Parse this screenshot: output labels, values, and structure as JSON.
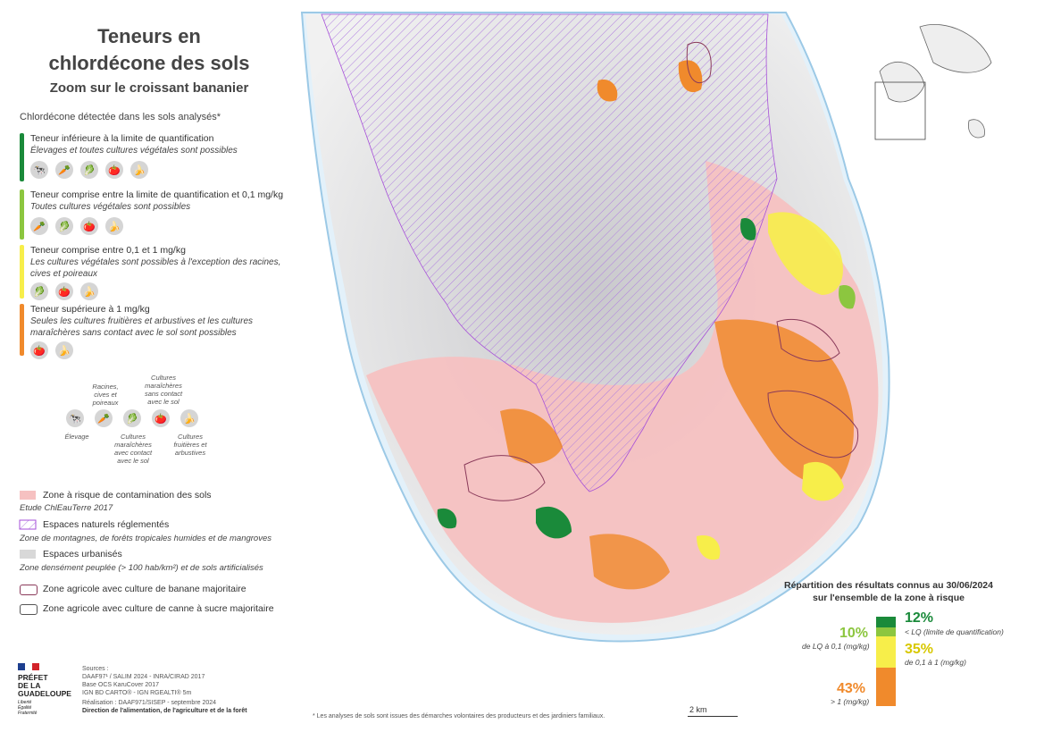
{
  "title_line1": "Teneurs en",
  "title_line2": "chlordécone des sols",
  "subtitle": "Zoom sur le croissant bananier",
  "legend": {
    "heading": "Chlordécone détectée dans les sols analysés*",
    "categories": [
      {
        "label": "Teneur inférieure à la limite de quantification",
        "desc": "Élevages et toutes cultures végétales sont possibles",
        "color": "#1a8a3a",
        "icons": [
          "cow-icon",
          "root-icon",
          "lettuce-icon",
          "tomato-icon",
          "banana-icon"
        ]
      },
      {
        "label": "Teneur comprise entre la limite de quantification et 0,1 mg/kg",
        "desc": "Toutes cultures végétales sont possibles",
        "color": "#8cc63f",
        "icons": [
          "root-icon",
          "lettuce-icon",
          "tomato-icon",
          "banana-icon"
        ]
      },
      {
        "label": "Teneur comprise entre 0,1 et 1 mg/kg",
        "desc": "Les cultures végétales sont possibles à l'exception des racines, cives et poireaux",
        "color": "#f7ee4a",
        "icons": [
          "lettuce-icon",
          "tomato-icon",
          "banana-icon"
        ]
      },
      {
        "label": "Teneur supérieure à 1 mg/kg",
        "desc": "Seules les cultures fruitières et arbustives et les cultures maraîchères sans contact avec le sol sont possibles",
        "color": "#f08a2c",
        "icons": [
          "tomato-icon",
          "banana-icon"
        ]
      }
    ],
    "icon_key": {
      "elevage": "Élevage",
      "racines": "Racines, cives et poireaux",
      "maraicheres_contact": "Cultures maraîchères avec contact avec le sol",
      "maraicheres_sans": "Cultures maraîchères sans contact avec le sol",
      "fruitieres": "Cultures fruitières et arbustives"
    },
    "zones": [
      {
        "label": "Zone à risque de contamination des sols",
        "note": "Etude ChlEauTerre 2017",
        "color": "#f6c1c1"
      },
      {
        "label": "Espaces naturels réglementés",
        "note": "Zone de montagnes, de forêts tropicales humides et de mangroves",
        "color": "#a64fd8"
      },
      {
        "label": "Espaces urbanisés",
        "note": "Zone densément peuplée (> 100 hab/km²) et de sols artificialisés",
        "color": "#d8d8d8"
      },
      {
        "label": "Zone agricole avec culture de banane majoritaire",
        "note": "",
        "color": "#8a3a5a"
      },
      {
        "label": "Zone agricole avec culture de canne à sucre majoritaire",
        "note": "",
        "color": "#555555"
      }
    ]
  },
  "prefet": [
    "PRÉFET",
    "DE LA",
    "GUADELOUPE"
  ],
  "motto": [
    "Liberté",
    "Égalité",
    "Fraternité"
  ],
  "sources": [
    "Sources :",
    "DAAF97¹ / SALIM 2024 - INRA/CIRAD 2017",
    "Base OCS KaruCover 2017",
    "IGN BD CARTO® - IGN RGEALTI® 5m",
    "Réalisation : DAAF971/SISEP - septembre 2024",
    "Direction de l'alimentation, de l'agriculture et de la forêt"
  ],
  "footnote": "* Les analyses de sols sont issues des démarches volontaires des producteurs et des jardiniers familiaux.",
  "scale_label": "2 km",
  "stats": {
    "title_line1": "Répartition des résultats connus au 30/06/2024",
    "title_line2": "sur l'ensemble de la zone à risque",
    "items": [
      {
        "pct": "12%",
        "label": "< LQ (limite de quantification)",
        "value": 12,
        "color": "#1a8a3a"
      },
      {
        "pct": "10%",
        "label": "de LQ à 0,1 (mg/kg)",
        "value": 10,
        "color": "#8cc63f"
      },
      {
        "pct": "35%",
        "label": "de 0,1 à 1 (mg/kg)",
        "value": 35,
        "color": "#f7ee4a"
      },
      {
        "pct": "43%",
        "label": "> 1 (mg/kg)",
        "value": 43,
        "color": "#f08a2c"
      }
    ]
  }
}
